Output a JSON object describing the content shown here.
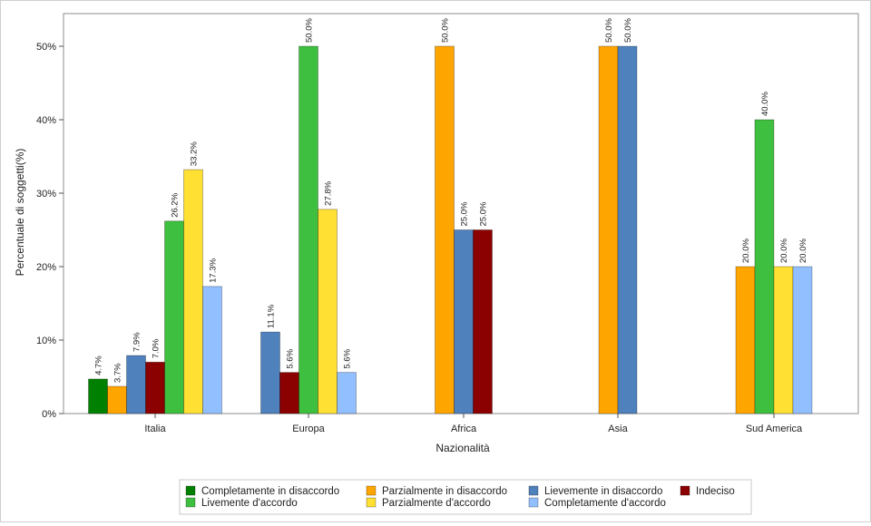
{
  "chart_data": {
    "type": "bar",
    "xlabel": "Nazionalità",
    "ylabel": "Percentuale di soggetti(%)",
    "ylim": [
      0,
      55
    ],
    "yticks": [
      "0%",
      "10%",
      "20%",
      "30%",
      "40%",
      "50%"
    ],
    "ytick_values": [
      0,
      10,
      20,
      30,
      40,
      50
    ],
    "grid": false,
    "legend_position": "bottom",
    "categories": [
      "Italia",
      "Europa",
      "Africa",
      "Asia",
      "Sud America"
    ],
    "series": [
      {
        "name": "Completamente in disaccordo",
        "color": "#008000",
        "values": [
          4.7,
          null,
          null,
          null,
          null
        ],
        "labels": [
          "4.7%",
          null,
          null,
          null,
          null
        ]
      },
      {
        "name": "Parzialmente in disaccordo",
        "color": "#FFA500",
        "values": [
          3.7,
          null,
          50.0,
          50.0,
          20.0
        ],
        "labels": [
          "3.7%",
          null,
          "50.0%",
          "50.0%",
          "20.0%"
        ]
      },
      {
        "name": "Lievemente in disaccordo",
        "color": "#4F81BD",
        "values": [
          7.9,
          11.1,
          25.0,
          50.0,
          null
        ],
        "labels": [
          "7.9%",
          "11.1%",
          "25.0%",
          "50.0%",
          null
        ]
      },
      {
        "name": "Indeciso",
        "color": "#8B0000",
        "values": [
          7.0,
          5.6,
          25.0,
          null,
          null
        ],
        "labels": [
          "7.0%",
          "5.6%",
          "25.0%",
          null,
          null
        ]
      },
      {
        "name": "Livemente d'accordo",
        "color": "#3FBF3F",
        "values": [
          26.2,
          50.0,
          null,
          null,
          40.0
        ],
        "labels": [
          "26.2%",
          "50.0%",
          null,
          null,
          "40.0%"
        ]
      },
      {
        "name": "Parzialmente d'accordo",
        "color": "#FFE033",
        "values": [
          33.2,
          27.8,
          null,
          null,
          20.0
        ],
        "labels": [
          "33.2%",
          "27.8%",
          null,
          null,
          "20.0%"
        ]
      },
      {
        "name": "Completamente d'accordo",
        "color": "#92BFFF",
        "values": [
          17.3,
          5.6,
          null,
          null,
          20.0
        ],
        "labels": [
          "17.3%",
          "5.6%",
          null,
          null,
          "20.0%"
        ]
      }
    ]
  }
}
